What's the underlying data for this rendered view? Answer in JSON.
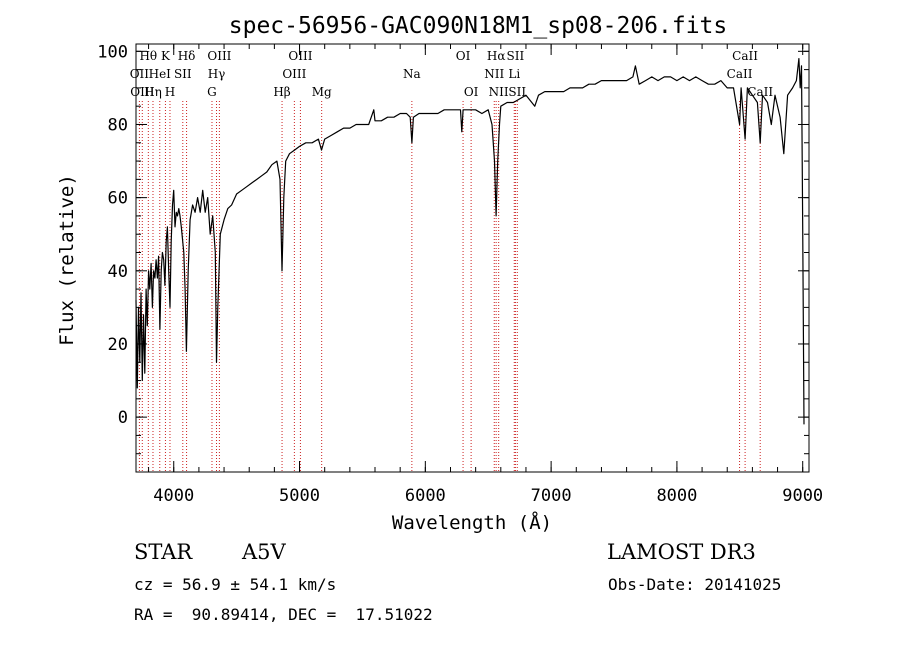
{
  "chart_data": {
    "type": "line",
    "title": "spec-56956-GAC090N18M1_sp08-206.fits",
    "xlabel": "Wavelength (Å)",
    "ylabel": "Flux (relative)",
    "xlim": [
      3700,
      9050
    ],
    "ylim": [
      -15,
      102
    ],
    "x_major_ticks": [
      4000,
      5000,
      6000,
      7000,
      8000,
      9000
    ],
    "x_tick_labels": [
      "4000",
      "5000",
      "6000",
      "7000",
      "8000",
      "9000"
    ],
    "x_minor_step": 200,
    "y_major_ticks": [
      0,
      20,
      40,
      60,
      80,
      100
    ],
    "y_tick_labels": [
      "0",
      "20",
      "40",
      "60",
      "80",
      "100"
    ],
    "y_minor_step": 5,
    "line_color": "#000000",
    "marker_color": "#cc2222",
    "series": [
      {
        "name": "flux",
        "points": [
          [
            3700,
            32
          ],
          [
            3710,
            8
          ],
          [
            3720,
            30
          ],
          [
            3730,
            15
          ],
          [
            3740,
            34
          ],
          [
            3750,
            10
          ],
          [
            3760,
            28
          ],
          [
            3770,
            12
          ],
          [
            3780,
            35
          ],
          [
            3790,
            25
          ],
          [
            3800,
            40
          ],
          [
            3810,
            35
          ],
          [
            3820,
            42
          ],
          [
            3830,
            30
          ],
          [
            3840,
            40
          ],
          [
            3850,
            38
          ],
          [
            3860,
            43
          ],
          [
            3870,
            38
          ],
          [
            3880,
            44
          ],
          [
            3890,
            24
          ],
          [
            3900,
            40
          ],
          [
            3910,
            45
          ],
          [
            3920,
            43
          ],
          [
            3930,
            36
          ],
          [
            3940,
            48
          ],
          [
            3950,
            52
          ],
          [
            3960,
            40
          ],
          [
            3970,
            30
          ],
          [
            3980,
            48
          ],
          [
            3990,
            58
          ],
          [
            4000,
            62
          ],
          [
            4010,
            52
          ],
          [
            4020,
            56
          ],
          [
            4030,
            55
          ],
          [
            4040,
            57
          ],
          [
            4050,
            55
          ],
          [
            4060,
            52
          ],
          [
            4080,
            45
          ],
          [
            4090,
            35
          ],
          [
            4101,
            18
          ],
          [
            4115,
            40
          ],
          [
            4130,
            54
          ],
          [
            4150,
            58
          ],
          [
            4170,
            56
          ],
          [
            4190,
            60
          ],
          [
            4210,
            56
          ],
          [
            4230,
            62
          ],
          [
            4250,
            56
          ],
          [
            4270,
            60
          ],
          [
            4290,
            50
          ],
          [
            4310,
            55
          ],
          [
            4330,
            45
          ],
          [
            4340,
            15
          ],
          [
            4350,
            30
          ],
          [
            4370,
            50
          ],
          [
            4400,
            54
          ],
          [
            4430,
            57
          ],
          [
            4460,
            58
          ],
          [
            4500,
            61
          ],
          [
            4540,
            62
          ],
          [
            4580,
            63
          ],
          [
            4620,
            64
          ],
          [
            4660,
            65
          ],
          [
            4700,
            66
          ],
          [
            4740,
            67
          ],
          [
            4780,
            69
          ],
          [
            4820,
            70
          ],
          [
            4845,
            65
          ],
          [
            4861,
            40
          ],
          [
            4875,
            60
          ],
          [
            4890,
            70
          ],
          [
            4920,
            72
          ],
          [
            4960,
            73
          ],
          [
            5000,
            74
          ],
          [
            5050,
            75
          ],
          [
            5100,
            75
          ],
          [
            5150,
            76
          ],
          [
            5175,
            73
          ],
          [
            5200,
            76
          ],
          [
            5250,
            77
          ],
          [
            5300,
            78
          ],
          [
            5350,
            79
          ],
          [
            5400,
            79
          ],
          [
            5450,
            80
          ],
          [
            5500,
            80
          ],
          [
            5550,
            80
          ],
          [
            5590,
            84
          ],
          [
            5600,
            81
          ],
          [
            5650,
            81
          ],
          [
            5700,
            82
          ],
          [
            5750,
            82
          ],
          [
            5800,
            83
          ],
          [
            5850,
            83
          ],
          [
            5880,
            82
          ],
          [
            5893,
            75
          ],
          [
            5905,
            82
          ],
          [
            5950,
            83
          ],
          [
            6000,
            83
          ],
          [
            6050,
            83
          ],
          [
            6100,
            83
          ],
          [
            6150,
            84
          ],
          [
            6200,
            84
          ],
          [
            6250,
            84
          ],
          [
            6280,
            84
          ],
          [
            6290,
            78
          ],
          [
            6300,
            84
          ],
          [
            6350,
            84
          ],
          [
            6400,
            84
          ],
          [
            6450,
            83
          ],
          [
            6500,
            84
          ],
          [
            6530,
            80
          ],
          [
            6550,
            70
          ],
          [
            6563,
            55
          ],
          [
            6575,
            70
          ],
          [
            6590,
            80
          ],
          [
            6600,
            85
          ],
          [
            6650,
            86
          ],
          [
            6700,
            86
          ],
          [
            6750,
            87
          ],
          [
            6800,
            88
          ],
          [
            6870,
            85
          ],
          [
            6900,
            88
          ],
          [
            6950,
            89
          ],
          [
            7000,
            89
          ],
          [
            7050,
            89
          ],
          [
            7100,
            89
          ],
          [
            7150,
            90
          ],
          [
            7200,
            90
          ],
          [
            7250,
            90
          ],
          [
            7300,
            91
          ],
          [
            7350,
            91
          ],
          [
            7400,
            92
          ],
          [
            7450,
            92
          ],
          [
            7500,
            92
          ],
          [
            7550,
            92
          ],
          [
            7600,
            92
          ],
          [
            7650,
            93
          ],
          [
            7670,
            96
          ],
          [
            7700,
            91
          ],
          [
            7750,
            92
          ],
          [
            7800,
            93
          ],
          [
            7850,
            92
          ],
          [
            7900,
            93
          ],
          [
            7950,
            93
          ],
          [
            8000,
            92
          ],
          [
            8050,
            93
          ],
          [
            8100,
            92
          ],
          [
            8150,
            93
          ],
          [
            8200,
            92
          ],
          [
            8250,
            91
          ],
          [
            8300,
            91
          ],
          [
            8350,
            92
          ],
          [
            8400,
            90
          ],
          [
            8450,
            90
          ],
          [
            8498,
            80
          ],
          [
            8510,
            90
          ],
          [
            8542,
            76
          ],
          [
            8560,
            90
          ],
          [
            8600,
            88
          ],
          [
            8640,
            86
          ],
          [
            8662,
            75
          ],
          [
            8680,
            88
          ],
          [
            8720,
            86
          ],
          [
            8750,
            80
          ],
          [
            8780,
            88
          ],
          [
            8820,
            82
          ],
          [
            8850,
            72
          ],
          [
            8880,
            88
          ],
          [
            8920,
            90
          ],
          [
            8950,
            92
          ],
          [
            8970,
            98
          ],
          [
            8980,
            90
          ],
          [
            8990,
            96
          ],
          [
            9000,
            52
          ],
          [
            9010,
            -2
          ]
        ]
      }
    ],
    "line_markers": [
      {
        "wavelength": 3727,
        "label": "OII",
        "row": 1
      },
      {
        "wavelength": 3750,
        "label": "OIII",
        "row": 2
      },
      {
        "wavelength": 3798,
        "label": "Hθ",
        "row": 0
      },
      {
        "wavelength": 3835,
        "label": "Hη",
        "row": 2
      },
      {
        "wavelength": 3889,
        "label": "HeI",
        "row": 1
      },
      {
        "wavelength": 3934,
        "label": "K",
        "row": 0
      },
      {
        "wavelength": 3970,
        "label": "H",
        "row": 2
      },
      {
        "wavelength": 4072,
        "label": "SII",
        "row": 1
      },
      {
        "wavelength": 4102,
        "label": "Hδ",
        "row": 0
      },
      {
        "wavelength": 4304,
        "label": "G",
        "row": 2
      },
      {
        "wavelength": 4340,
        "label": "Hγ",
        "row": 1
      },
      {
        "wavelength": 4363,
        "label": "OIII",
        "row": 0
      },
      {
        "wavelength": 4861,
        "label": "Hβ",
        "row": 2
      },
      {
        "wavelength": 4959,
        "label": "OIII",
        "row": 1
      },
      {
        "wavelength": 5007,
        "label": "OIII",
        "row": 0
      },
      {
        "wavelength": 5176,
        "label": "Mg",
        "row": 2
      },
      {
        "wavelength": 5893,
        "label": "Na",
        "row": 1
      },
      {
        "wavelength": 6300,
        "label": "OI",
        "row": 0
      },
      {
        "wavelength": 6364,
        "label": "OI",
        "row": 2
      },
      {
        "wavelength": 6548,
        "label": "NII",
        "row": 1
      },
      {
        "wavelength": 6563,
        "label": "Hα",
        "row": 0
      },
      {
        "wavelength": 6583,
        "label": "NII",
        "row": 2
      },
      {
        "wavelength": 6707,
        "label": "Li",
        "row": 1
      },
      {
        "wavelength": 6716,
        "label": "SII",
        "row": 0
      },
      {
        "wavelength": 6731,
        "label": "SII",
        "row": 2
      },
      {
        "wavelength": 8498,
        "label": "CaII",
        "row": 1
      },
      {
        "wavelength": 8542,
        "label": "CaII",
        "row": 0
      },
      {
        "wavelength": 8662,
        "label": "CaII",
        "row": 2
      }
    ]
  },
  "info": {
    "object_class": "STAR",
    "subclass": "A5V",
    "survey": "LAMOST DR3",
    "redshift_text": "cz = 56.9 ± 54.1 km/s",
    "obs_date_text": "Obs-Date: 20141025",
    "coords_text": "RA =  90.89414, DEC =  17.51022"
  }
}
